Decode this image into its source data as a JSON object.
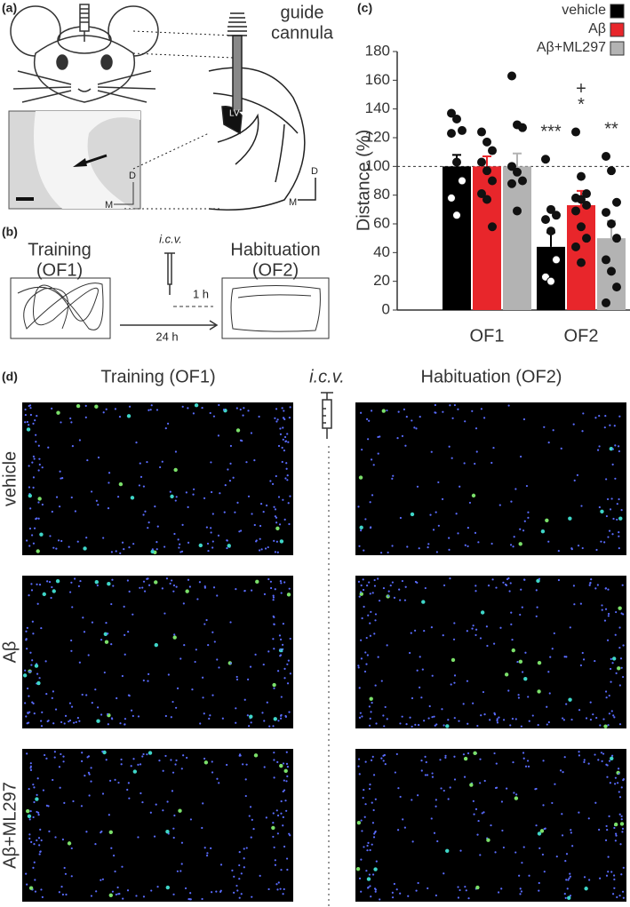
{
  "panel_a": {
    "label": "(a)",
    "cannula_label": [
      "guide",
      "cannula"
    ],
    "ventricle_label": "LV",
    "axis_inset": {
      "dorsal": "D",
      "medial": "M"
    },
    "axis_section": {
      "dorsal": "D",
      "medial": "M"
    }
  },
  "panel_b": {
    "label": "(b)",
    "training": [
      "Training",
      "(OF1)"
    ],
    "injection": "i.c.v.",
    "delay": "1 h",
    "interval": "24 h",
    "habituation": [
      "Habituation",
      "(OF2)"
    ]
  },
  "chart_data": {
    "type": "bar",
    "panel_label": "(c)",
    "ylabel": "Distance (%)",
    "categories": [
      "OF1",
      "OF2"
    ],
    "series": [
      {
        "name": "vehicle",
        "color": "#000000",
        "values": [
          100,
          44
        ],
        "errors": [
          8,
          10
        ],
        "points": [
          [
            137,
            133,
            125,
            123,
            103,
            90,
            78,
            66
          ],
          [
            105,
            70,
            66,
            63,
            55,
            35,
            23,
            20
          ]
        ],
        "annotations": [
          [],
          [
            "***"
          ]
        ]
      },
      {
        "name": "Aβ",
        "color": "#e8262b",
        "values": [
          100,
          73
        ],
        "errors": [
          7,
          10
        ],
        "points": [
          [
            124,
            117,
            111,
            103,
            97,
            90,
            81,
            77,
            58
          ],
          [
            124,
            93,
            81,
            78,
            77,
            73,
            69,
            58,
            50,
            44,
            33
          ]
        ],
        "annotations": [
          [],
          [
            "+",
            "*"
          ]
        ]
      },
      {
        "name": "Aβ+ML297",
        "color": "#b3b3b3",
        "values": [
          100,
          50
        ],
        "errors": [
          9,
          12
        ],
        "points": [
          [
            163,
            129,
            127,
            100,
            96,
            90,
            88,
            69
          ],
          [
            107,
            97,
            75,
            68,
            60,
            50,
            35,
            27,
            16,
            5
          ]
        ],
        "annotations": [
          [],
          [
            "**"
          ]
        ]
      }
    ],
    "ylim": [
      0,
      180
    ],
    "yticks": [
      0,
      20,
      40,
      60,
      80,
      100,
      120,
      140,
      160,
      180
    ],
    "reference_line": 100,
    "legend": "top-right"
  },
  "panel_d": {
    "label": "(d)",
    "columns": [
      "Training (OF1)",
      "Habituation (OF2)"
    ],
    "injection": "i.c.v.",
    "rows": [
      "vehicle",
      "Aβ",
      "Aβ+ML297"
    ]
  }
}
